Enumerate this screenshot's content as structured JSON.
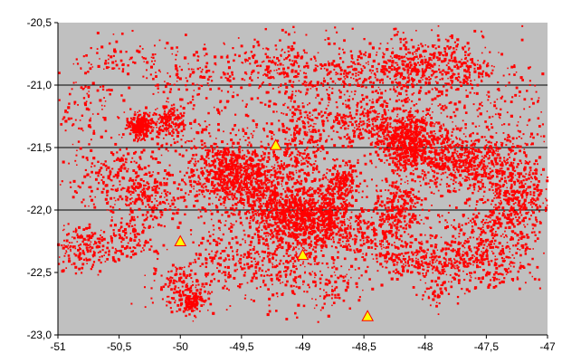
{
  "chart_data": {
    "type": "scatter",
    "title": "",
    "xlabel": "",
    "ylabel": "",
    "xlim": [
      -51,
      -47
    ],
    "ylim": [
      -23.0,
      -20.5
    ],
    "x_ticks": [
      "-51",
      "-50,5",
      "-50",
      "-49,5",
      "-49",
      "-48,5",
      "-48",
      "-47,5",
      "-47"
    ],
    "y_ticks": [
      "-20,5",
      "-21,0",
      "-21,5",
      "-22,0",
      "-22,5",
      "-23,0"
    ],
    "grid_lines_y": [
      -21.0,
      -21.5,
      -22.0
    ],
    "background_color": "#c0c0c0",
    "series": [
      {
        "marker": "square",
        "color": "#ff0000",
        "clusters": [
          {
            "x": -50.33,
            "y": -21.32,
            "sx": 0.05,
            "sy": 0.05,
            "n": 260
          },
          {
            "x": -50.1,
            "y": -21.3,
            "sx": 0.08,
            "sy": 0.06,
            "n": 140
          },
          {
            "x": -49.6,
            "y": -21.7,
            "sx": 0.18,
            "sy": 0.12,
            "n": 520
          },
          {
            "x": -49.35,
            "y": -21.8,
            "sx": 0.2,
            "sy": 0.15,
            "n": 500
          },
          {
            "x": -49.1,
            "y": -22.05,
            "sx": 0.18,
            "sy": 0.12,
            "n": 560
          },
          {
            "x": -48.85,
            "y": -22.08,
            "sx": 0.15,
            "sy": 0.12,
            "n": 460
          },
          {
            "x": -49.0,
            "y": -21.45,
            "sx": 0.12,
            "sy": 0.2,
            "n": 260
          },
          {
            "x": -48.7,
            "y": -21.8,
            "sx": 0.08,
            "sy": 0.08,
            "n": 220
          },
          {
            "x": -48.4,
            "y": -21.3,
            "sx": 0.2,
            "sy": 0.1,
            "n": 300
          },
          {
            "x": -48.15,
            "y": -21.45,
            "sx": 0.12,
            "sy": 0.1,
            "n": 420
          },
          {
            "x": -47.9,
            "y": -21.55,
            "sx": 0.25,
            "sy": 0.12,
            "n": 380
          },
          {
            "x": -47.6,
            "y": -21.65,
            "sx": 0.22,
            "sy": 0.1,
            "n": 360
          },
          {
            "x": -47.25,
            "y": -21.9,
            "sx": 0.15,
            "sy": 0.18,
            "n": 400
          },
          {
            "x": -47.55,
            "y": -22.2,
            "sx": 0.2,
            "sy": 0.15,
            "n": 260
          },
          {
            "x": -48.0,
            "y": -22.4,
            "sx": 0.2,
            "sy": 0.08,
            "n": 260
          },
          {
            "x": -47.5,
            "y": -22.45,
            "sx": 0.2,
            "sy": 0.1,
            "n": 180
          },
          {
            "x": -48.2,
            "y": -21.95,
            "sx": 0.12,
            "sy": 0.1,
            "n": 220
          },
          {
            "x": -48.35,
            "y": -22.2,
            "sx": 0.15,
            "sy": 0.1,
            "n": 180
          },
          {
            "x": -48.15,
            "y": -20.85,
            "sx": 0.12,
            "sy": 0.12,
            "n": 220
          },
          {
            "x": -47.75,
            "y": -20.85,
            "sx": 0.15,
            "sy": 0.1,
            "n": 200
          },
          {
            "x": -48.55,
            "y": -20.9,
            "sx": 0.15,
            "sy": 0.1,
            "n": 140
          },
          {
            "x": -49.2,
            "y": -20.85,
            "sx": 0.18,
            "sy": 0.1,
            "n": 130
          },
          {
            "x": -49.8,
            "y": -20.9,
            "sx": 0.2,
            "sy": 0.1,
            "n": 110
          },
          {
            "x": -50.5,
            "y": -20.8,
            "sx": 0.25,
            "sy": 0.1,
            "n": 90
          },
          {
            "x": -50.8,
            "y": -21.2,
            "sx": 0.15,
            "sy": 0.15,
            "n": 90
          },
          {
            "x": -50.6,
            "y": -21.75,
            "sx": 0.2,
            "sy": 0.12,
            "n": 180
          },
          {
            "x": -50.25,
            "y": -21.9,
            "sx": 0.15,
            "sy": 0.1,
            "n": 200
          },
          {
            "x": -50.8,
            "y": -22.3,
            "sx": 0.12,
            "sy": 0.1,
            "n": 180
          },
          {
            "x": -50.45,
            "y": -22.25,
            "sx": 0.12,
            "sy": 0.08,
            "n": 120
          },
          {
            "x": -50.0,
            "y": -22.6,
            "sx": 0.12,
            "sy": 0.1,
            "n": 150
          },
          {
            "x": -49.9,
            "y": -22.72,
            "sx": 0.06,
            "sy": 0.05,
            "n": 120
          },
          {
            "x": -49.6,
            "y": -22.4,
            "sx": 0.18,
            "sy": 0.15,
            "n": 180
          },
          {
            "x": -49.15,
            "y": -22.45,
            "sx": 0.15,
            "sy": 0.15,
            "n": 160
          },
          {
            "x": -48.75,
            "y": -22.65,
            "sx": 0.1,
            "sy": 0.1,
            "n": 60
          },
          {
            "x": -47.9,
            "y": -22.65,
            "sx": 0.1,
            "sy": 0.06,
            "n": 50
          },
          {
            "x": -49.0,
            "y": -21.0,
            "sx": 0.25,
            "sy": 0.25,
            "n": 200
          },
          {
            "x": -48.0,
            "y": -21.1,
            "sx": 0.35,
            "sy": 0.3,
            "n": 260
          },
          {
            "x": -49.9,
            "y": -21.5,
            "sx": 0.3,
            "sy": 0.3,
            "n": 240
          },
          {
            "x": -48.9,
            "y": -22.3,
            "sx": 0.35,
            "sy": 0.2,
            "n": 200
          },
          {
            "x": -47.3,
            "y": -21.2,
            "sx": 0.2,
            "sy": 0.2,
            "n": 140
          }
        ]
      },
      {
        "marker": "triangle",
        "color": "#ffff00",
        "stroke": "#ff0000",
        "points": [
          {
            "x": -49.22,
            "y": -21.48
          },
          {
            "x": -50.0,
            "y": -22.25
          },
          {
            "x": -49.0,
            "y": -22.36
          },
          {
            "x": -48.47,
            "y": -22.85
          }
        ]
      }
    ]
  }
}
